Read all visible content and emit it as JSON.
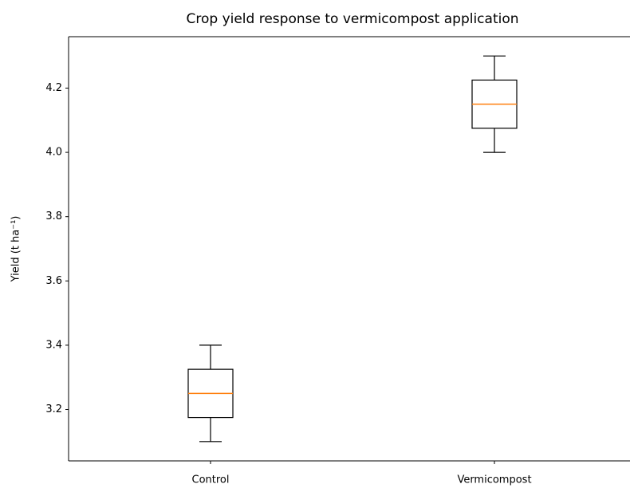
{
  "chart_data": {
    "type": "box",
    "title": "Crop yield response to vermicompost application",
    "ylabel": "Yield (t ha⁻¹)",
    "categories": [
      "Control",
      "Vermicompost"
    ],
    "boxes": [
      {
        "min": 3.1,
        "q1": 3.175,
        "median": 3.25,
        "q3": 3.325,
        "max": 3.4
      },
      {
        "min": 4.0,
        "q1": 4.075,
        "median": 4.15,
        "q3": 4.225,
        "max": 4.3
      }
    ],
    "box_color": "#000000",
    "median_color": "#ff7f0e",
    "xlim": [
      0.5,
      2.5
    ],
    "ylim": [
      3.04,
      4.36
    ],
    "yticks": [
      3.2,
      3.4,
      3.6,
      3.8,
      {
        "value": 4.0,
        "label": "4.0"
      },
      4.2
    ],
    "grid": false
  }
}
